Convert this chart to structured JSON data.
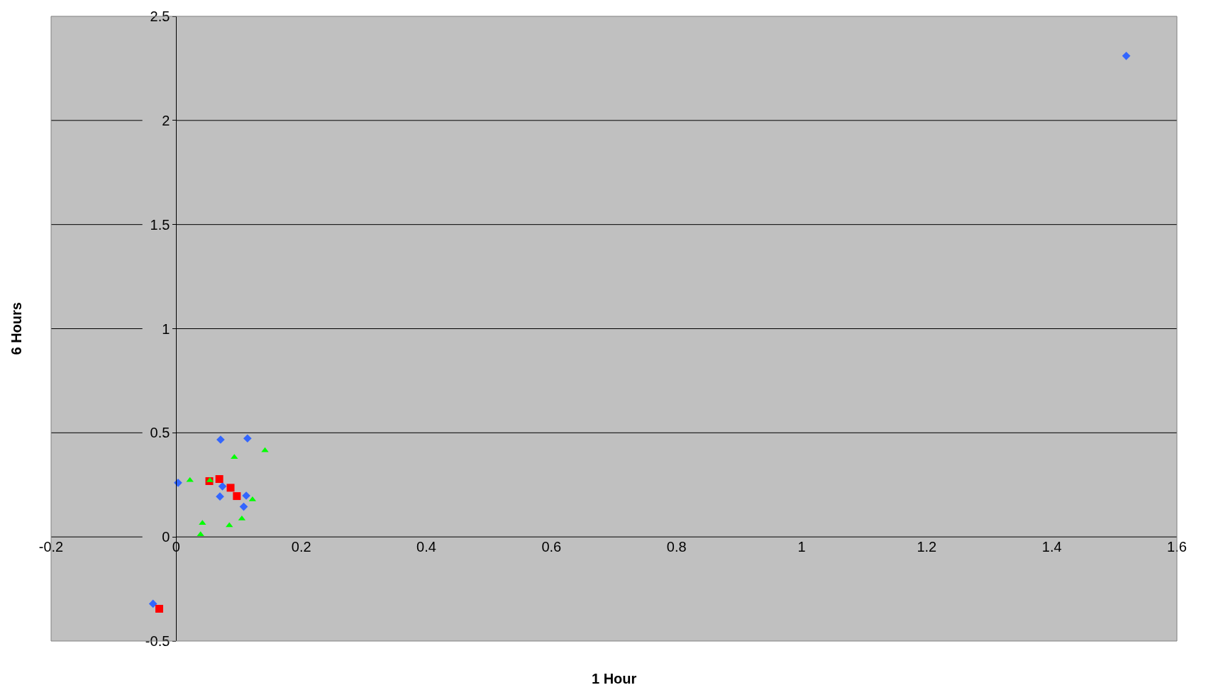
{
  "chart_data": {
    "type": "scatter",
    "xlabel": "1 Hour",
    "ylabel": "6 Hours",
    "xlim": [
      -0.2,
      1.6
    ],
    "xticks": [
      -0.2,
      0,
      0.2,
      0.4,
      0.6,
      0.8,
      1,
      1.2,
      1.4,
      1.6
    ],
    "ylim": [
      -0.5,
      2.5
    ],
    "yticks": [
      -0.5,
      0,
      0.5,
      1,
      1.5,
      2,
      2.5
    ],
    "grid": "y",
    "series": [
      {
        "color": "#3366ff",
        "marker": "diamond",
        "x": [
          0.071,
          0.114,
          0.003,
          0.074,
          0.07,
          0.112,
          0.108,
          -0.037,
          1.519
        ],
        "values": [
          0.467,
          0.473,
          0.26,
          0.243,
          0.194,
          0.198,
          0.145,
          -0.321,
          2.31
        ]
      },
      {
        "color": "#ff0000",
        "marker": "square",
        "x": [
          0.053,
          0.069,
          0.087,
          0.097,
          -0.027
        ],
        "values": [
          0.268,
          0.278,
          0.236,
          0.196,
          -0.345
        ]
      },
      {
        "color": "#00ff00",
        "marker": "triangle",
        "x": [
          0.022,
          0.054,
          0.093,
          0.142,
          0.122,
          0.042,
          0.039,
          0.085,
          0.105
        ],
        "values": [
          0.272,
          0.271,
          0.383,
          0.415,
          0.179,
          0.066,
          0.012,
          0.055,
          0.087
        ]
      }
    ]
  }
}
